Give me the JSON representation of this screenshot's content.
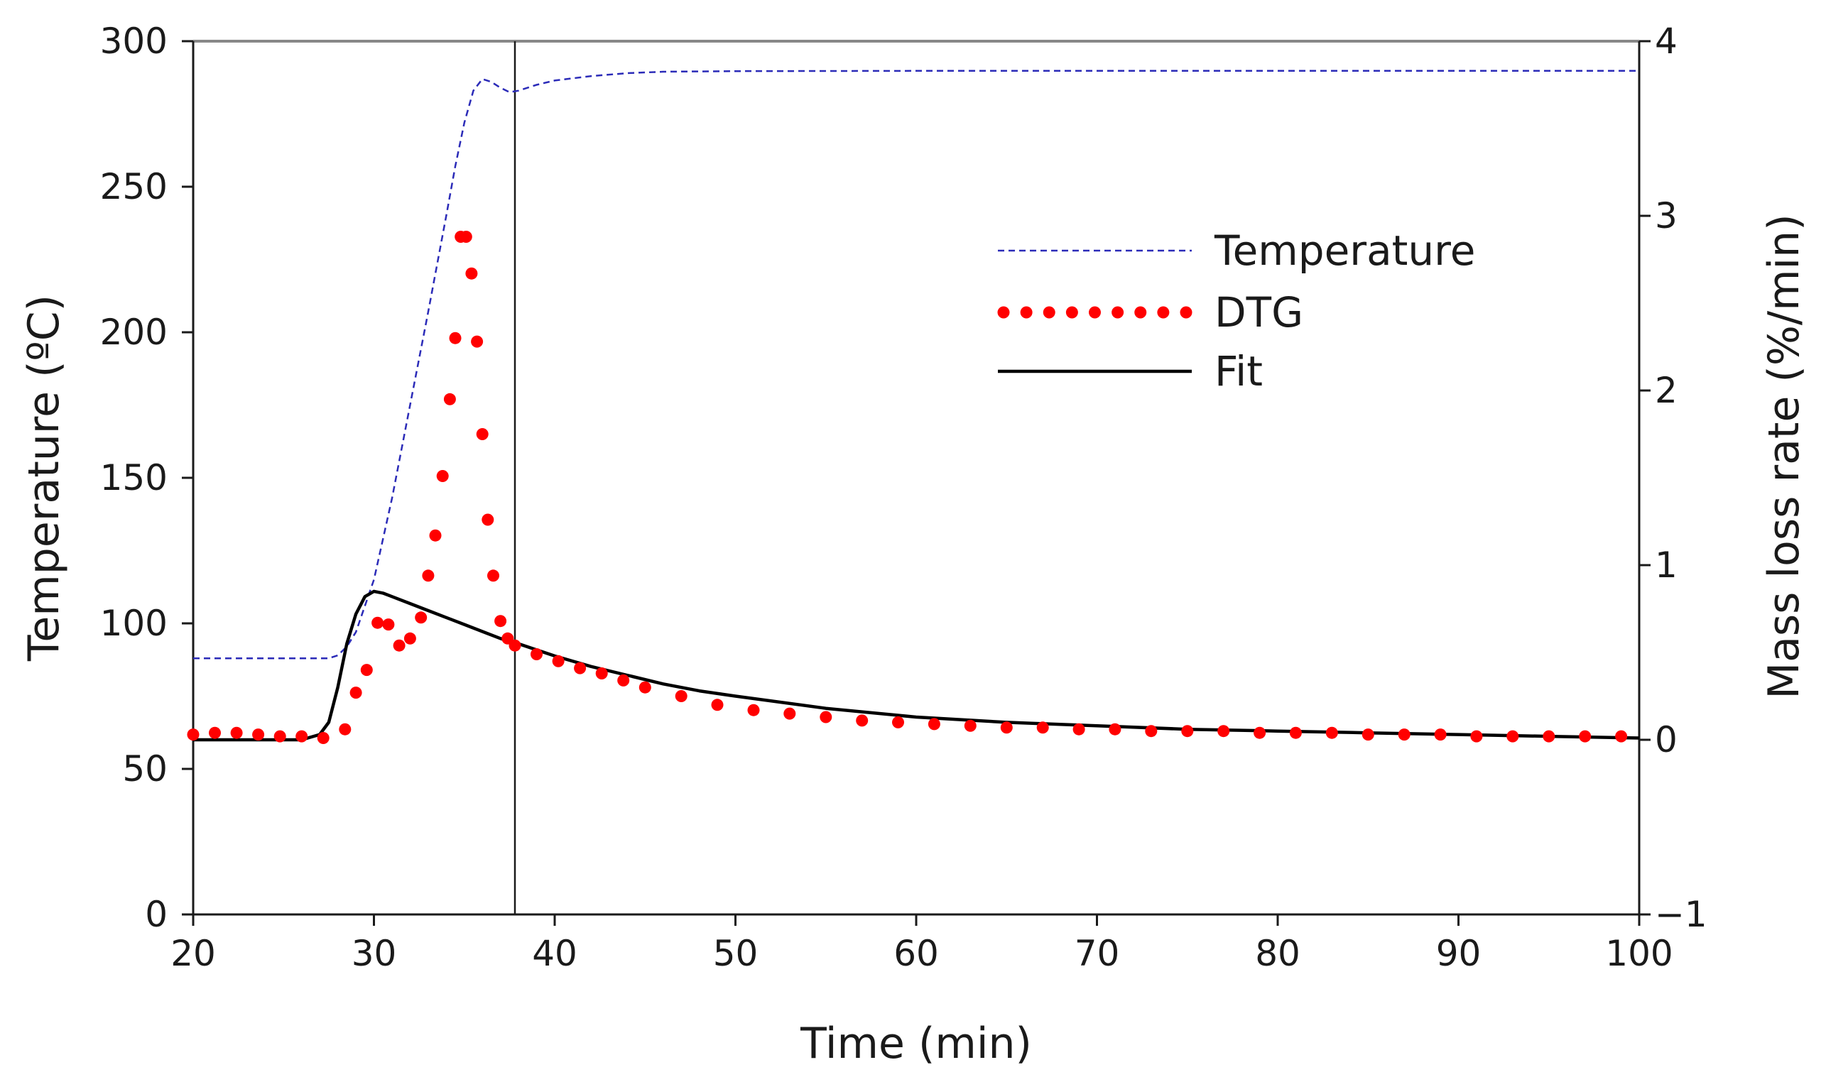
{
  "chart_data": {
    "type": "line",
    "title": "",
    "xlabel": "Time (min)",
    "ylabel_left": "Temperature (ºC)",
    "ylabel_right": "Mass loss rate (%/min)",
    "xlim": [
      20,
      100
    ],
    "ylim_left": [
      0,
      300
    ],
    "ylim_right": [
      -1,
      4
    ],
    "x_ticks": [
      20,
      30,
      40,
      50,
      60,
      70,
      80,
      90,
      100
    ],
    "y_ticks_left": [
      0,
      50,
      100,
      150,
      200,
      250,
      300
    ],
    "y_ticks_right": [
      -1,
      0,
      1,
      2,
      3,
      4
    ],
    "right_tick_labels": [
      "−1",
      "0",
      "1",
      "2",
      "3",
      "4"
    ],
    "vertical_line_x": 37.8,
    "legend_position": "top-right",
    "colors": {
      "temperature": "#2b2bb8",
      "dtg": "#ff0000",
      "fit": "#000000",
      "axis": "#1a1a1a",
      "frame_top": "#888888"
    },
    "series": [
      {
        "name": "Temperature",
        "axis": "left",
        "style": "dashed",
        "x": [
          20,
          27.5,
          28,
          28.5,
          29,
          30,
          31,
          32,
          33,
          34,
          34.5,
          35,
          35.5,
          36,
          36.5,
          37,
          37.5,
          38,
          39,
          40,
          42,
          44,
          46,
          50,
          60,
          70,
          80,
          90,
          100
        ],
        "y": [
          88,
          88,
          89,
          92,
          97,
          115,
          143,
          175,
          207,
          240,
          257,
          272,
          283,
          287,
          286,
          284,
          282.5,
          283,
          285,
          286.5,
          288,
          289,
          289.5,
          289.7,
          289.8,
          289.8,
          289.8,
          289.8,
          289.8
        ]
      },
      {
        "name": "DTG",
        "axis": "right",
        "style": "dotted",
        "x": [
          20,
          21.2,
          22.4,
          23.6,
          24.8,
          26,
          27.2,
          28.4,
          29.0,
          29.6,
          30.2,
          30.8,
          31.4,
          32.0,
          32.6,
          33.0,
          33.4,
          33.8,
          34.2,
          34.5,
          34.8,
          35.1,
          35.4,
          35.7,
          36.0,
          36.3,
          36.6,
          37.0,
          37.4,
          37.8,
          39.0,
          40.2,
          41.4,
          42.6,
          43.8,
          45,
          47,
          49,
          51,
          53,
          55,
          57,
          59,
          61,
          63,
          65,
          67,
          69,
          71,
          73,
          75,
          77,
          79,
          81,
          83,
          85,
          87,
          89,
          91,
          93,
          95,
          97,
          99
        ],
        "y": [
          0.03,
          0.04,
          0.04,
          0.03,
          0.02,
          0.02,
          0.01,
          0.06,
          0.27,
          0.4,
          0.67,
          0.66,
          0.54,
          0.58,
          0.7,
          0.94,
          1.17,
          1.51,
          1.95,
          2.3,
          2.88,
          2.88,
          2.67,
          2.28,
          1.75,
          1.26,
          0.94,
          0.68,
          0.58,
          0.54,
          0.49,
          0.45,
          0.41,
          0.38,
          0.34,
          0.3,
          0.25,
          0.2,
          0.17,
          0.15,
          0.13,
          0.11,
          0.1,
          0.09,
          0.08,
          0.07,
          0.07,
          0.06,
          0.06,
          0.05,
          0.05,
          0.05,
          0.04,
          0.04,
          0.04,
          0.03,
          0.03,
          0.03,
          0.02,
          0.02,
          0.02,
          0.02,
          0.02
        ]
      },
      {
        "name": "Fit",
        "axis": "right",
        "style": "solid",
        "x": [
          20,
          26,
          27,
          27.5,
          28,
          28.5,
          29,
          29.5,
          30,
          30.5,
          31,
          32,
          33,
          34,
          35,
          36,
          37,
          38,
          40,
          42,
          44,
          46,
          48,
          50,
          55,
          60,
          65,
          70,
          75,
          80,
          85,
          90,
          95,
          100
        ],
        "y": [
          0.0,
          0.0,
          0.03,
          0.1,
          0.3,
          0.55,
          0.72,
          0.82,
          0.85,
          0.84,
          0.82,
          0.78,
          0.74,
          0.7,
          0.66,
          0.62,
          0.58,
          0.55,
          0.48,
          0.42,
          0.37,
          0.32,
          0.28,
          0.25,
          0.18,
          0.13,
          0.1,
          0.08,
          0.06,
          0.05,
          0.04,
          0.03,
          0.02,
          0.01
        ]
      }
    ]
  }
}
